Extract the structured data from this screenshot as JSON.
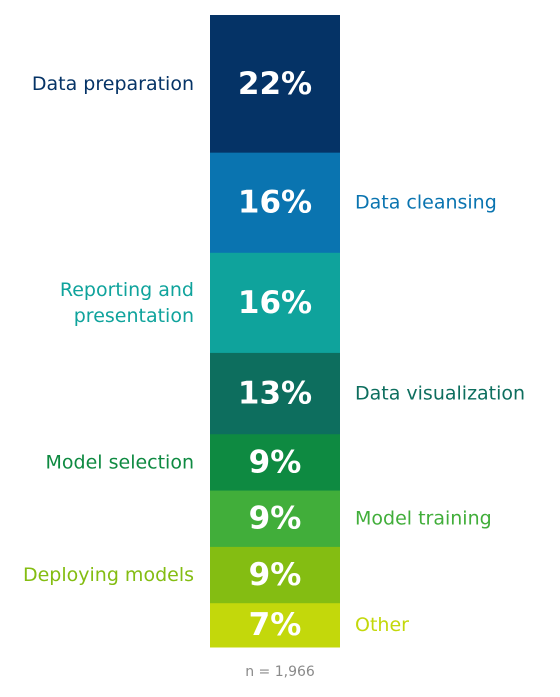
{
  "chart_data": {
    "type": "bar",
    "subtype": "stacked-100",
    "categories": [
      "Data preparation",
      "Data cleansing",
      "Reporting and presentation",
      "Data visualization",
      "Model selection",
      "Model training",
      "Deploying models",
      "Other"
    ],
    "label_lines": [
      [
        "Data preparation"
      ],
      [
        "Data cleansing"
      ],
      [
        "Reporting and",
        "presentation"
      ],
      [
        "Data visualization"
      ],
      [
        "Model selection"
      ],
      [
        "Model training"
      ],
      [
        "Deploying models"
      ],
      [
        "Other"
      ]
    ],
    "values": [
      22,
      16,
      16,
      13,
      9,
      9,
      9,
      7
    ],
    "value_labels": [
      "22%",
      "16%",
      "16%",
      "13%",
      "9%",
      "9%",
      "9%",
      "7%"
    ],
    "label_sides": [
      "left",
      "right",
      "left",
      "right",
      "left",
      "right",
      "left",
      "right"
    ],
    "colors": [
      "#053366",
      "#0a74b0",
      "#0fa39c",
      "#0d6e5e",
      "#0e8a41",
      "#41ae3a",
      "#84bd12",
      "#c3d80b"
    ],
    "label_colors": [
      "#053366",
      "#0a74b0",
      "#0fa39c",
      "#0d6e5e",
      "#0e8a41",
      "#41ae3a",
      "#84bd12",
      "#c3d80b"
    ],
    "unit": "%",
    "title": "",
    "xlabel": "",
    "ylabel": "",
    "grid": false,
    "legend": "none"
  },
  "note": "n = 1,966"
}
